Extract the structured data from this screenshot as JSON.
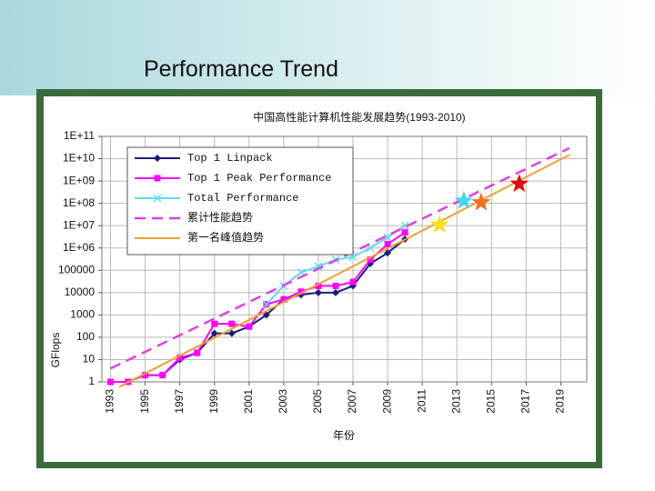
{
  "title": "Performance Trend",
  "chart_data": {
    "type": "line",
    "title": "中国高性能计算机性能发展趋势(1993-2010)",
    "x_label": "年份",
    "y_label": "GFlops",
    "log_scale": true,
    "grid": true,
    "legend": "upper left",
    "xlim": [
      1992.5,
      2020.5
    ],
    "xticks": [
      1993,
      1995,
      1997,
      1999,
      2001,
      2003,
      2005,
      2007,
      2009,
      2011,
      2013,
      2015,
      2017,
      2019
    ],
    "ylim": [
      1,
      100000000000
    ],
    "yticks": [
      1,
      10,
      100,
      1000,
      10000,
      100000,
      {
        "value": 1000000,
        "label": "1E+06"
      },
      {
        "value": 10000000,
        "label": "1E+07"
      },
      {
        "value": 100000000,
        "label": "1E+08"
      },
      {
        "value": 1000000000,
        "label": "1E+09"
      },
      {
        "value": 10000000000,
        "label": "1E+10"
      },
      {
        "value": 100000000000,
        "label": "1E+11"
      }
    ],
    "series": [
      {
        "name": "Top 1 Linpack",
        "color": "#1c1c78",
        "marker": "diamond",
        "style": "solid",
        "x": [
          1995,
          1996,
          1997,
          1998,
          1999,
          2000,
          2001,
          2002,
          2003,
          2004,
          2005,
          2006,
          2007,
          2008,
          2009,
          2010
        ],
        "values": [
          2,
          2,
          10,
          20,
          150,
          150,
          300,
          1000,
          5000,
          8000,
          10000,
          10000,
          20000,
          200000,
          600000,
          2500000
        ]
      },
      {
        "name": "Top 1 Peak Performance",
        "color": "#ff00ff",
        "marker": "square",
        "style": "solid",
        "x": [
          1993,
          1994,
          1995,
          1996,
          1997,
          1998,
          1999,
          2000,
          2001,
          2002,
          2003,
          2004,
          2005,
          2006,
          2007,
          2008,
          2009,
          2010
        ],
        "values": [
          1,
          1,
          2,
          2,
          12,
          20,
          400,
          400,
          300,
          3000,
          5000,
          11000,
          20000,
          20000,
          30000,
          300000,
          1500000,
          5000000
        ]
      },
      {
        "name": "Total Performance",
        "color": "#5fdcec",
        "marker": "cross",
        "style": "solid",
        "x": [
          2002,
          2003,
          2004,
          2005,
          2006,
          2007,
          2008,
          2009,
          2010
        ],
        "values": [
          3000,
          20000,
          80000,
          150000,
          300000,
          400000,
          1000000,
          3000000,
          10000000
        ]
      },
      {
        "name": "累计性能趋势",
        "color": "#e040e0",
        "marker": "none",
        "style": "dashed",
        "x": [
          1993,
          2019.5
        ],
        "values": [
          4,
          30000000000
        ]
      },
      {
        "name": "第一名峰值趋势",
        "color": "#f0a030",
        "marker": "none",
        "style": "solid",
        "x": [
          1993.5,
          2019.5
        ],
        "values": [
          0.6,
          15000000000
        ]
      }
    ],
    "points": [
      {
        "x": 2012,
        "y": 11000000,
        "color": "#f5e020"
      },
      {
        "x": 2013.4,
        "y": 130000000,
        "color": "#40d8f0"
      },
      {
        "x": 2014.4,
        "y": 110000000,
        "color": "#f07020"
      },
      {
        "x": 2016.6,
        "y": 750000000,
        "color": "#e01010"
      }
    ]
  }
}
